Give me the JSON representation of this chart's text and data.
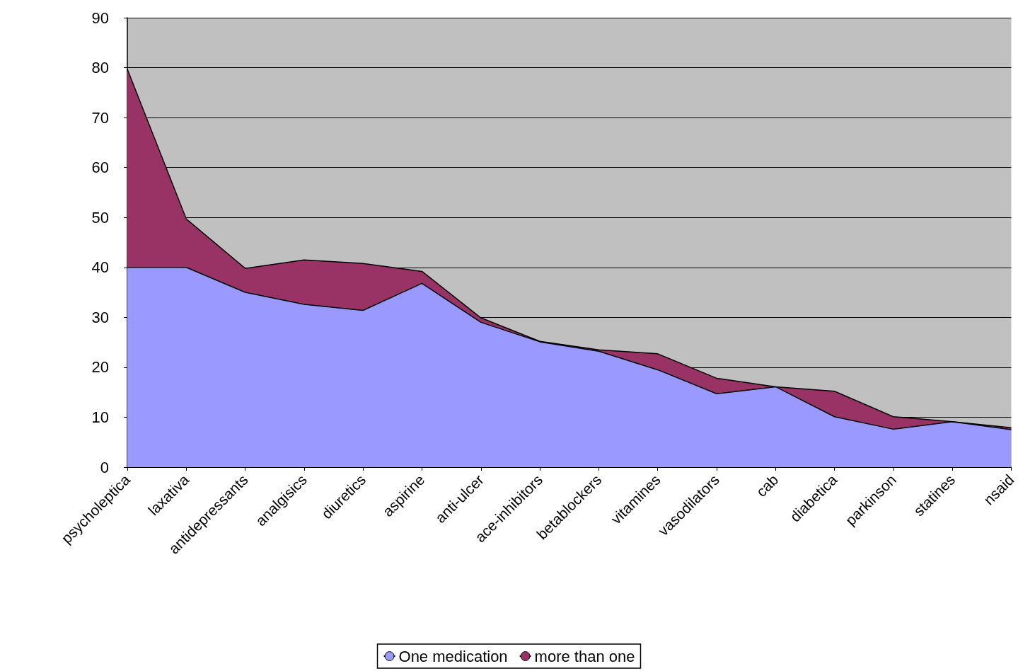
{
  "chart_data": {
    "type": "area",
    "stacked": true,
    "categories": [
      "psycholeptica",
      "laxativa",
      "antidepressants",
      "analgisics",
      "diuretics",
      "aspirine",
      "anti-ulcer",
      "ace-inhibitors",
      "betablockers",
      "vitamines",
      "vasodilators",
      "cab",
      "diabetica",
      "parkinson",
      "statines",
      "nsaid"
    ],
    "series": [
      {
        "name": "One medication",
        "color": "#9999ff",
        "values": [
          40,
          40,
          35,
          32.6,
          31.4,
          36.8,
          29,
          25.1,
          23.2,
          19.5,
          14.7,
          16.1,
          10.1,
          7.6,
          9.1,
          7.5
        ]
      },
      {
        "name": "more than one",
        "color": "#993366",
        "values": [
          39.7,
          9.7,
          4.8,
          8.9,
          9.4,
          2.4,
          0.9,
          0.1,
          0.3,
          3.2,
          3.1,
          0,
          5.1,
          2.5,
          0,
          0.4
        ]
      }
    ],
    "ylim": [
      0,
      90
    ],
    "yticks": [
      0,
      10,
      20,
      30,
      40,
      50,
      60,
      70,
      80,
      90
    ],
    "grid": "y",
    "legend": "bottom"
  }
}
